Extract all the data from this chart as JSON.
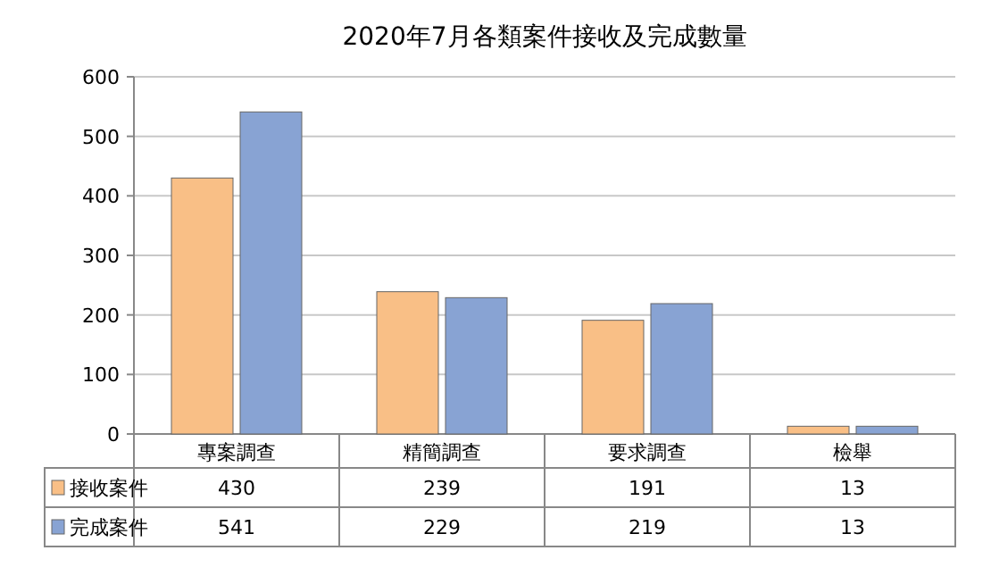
{
  "chart_data": {
    "type": "bar",
    "title": "2020年7月各類案件接收及完成數量",
    "categories": [
      "專案調查",
      "精簡調查",
      "要求調查",
      "檢舉"
    ],
    "series": [
      {
        "name": "接收案件",
        "color": "#f9bf86",
        "values": [
          430,
          239,
          191,
          13
        ]
      },
      {
        "name": "完成案件",
        "color": "#88a3d3",
        "values": [
          541,
          229,
          219,
          13
        ]
      }
    ],
    "ylim": [
      0,
      600
    ],
    "yticks": [
      0,
      100,
      200,
      300,
      400,
      500,
      600
    ],
    "grid": "y",
    "legend": "bottom",
    "data_labels": true
  }
}
